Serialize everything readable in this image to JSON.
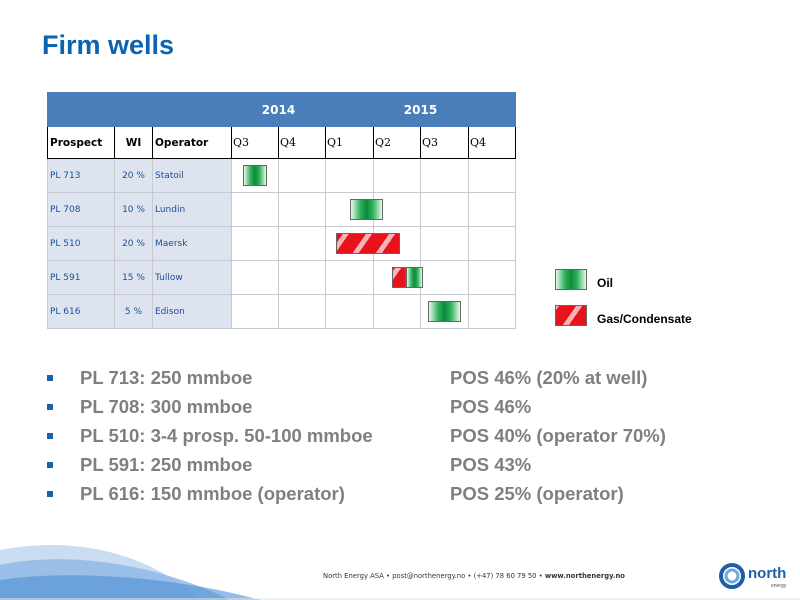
{
  "slide": {
    "title": "Firm wells"
  },
  "gantt": {
    "years": [
      "2014",
      "2015"
    ],
    "headers": {
      "prospect": "Prospect",
      "wi": "WI",
      "operator": "Operator"
    },
    "quarters": [
      "Q3",
      "Q4",
      "Q1",
      "Q2",
      "Q3",
      "Q4"
    ],
    "rows": [
      {
        "prospect": "PL 713",
        "wi": "20 %",
        "operator": "Statoil",
        "type": "oil",
        "start": 0.25,
        "end": 0.75
      },
      {
        "prospect": "PL 708",
        "wi": "10 %",
        "operator": "Lundin",
        "type": "oil",
        "start": 2.5,
        "end": 3.2
      },
      {
        "prospect": "PL 510",
        "wi": "20 %",
        "operator": "Maersk",
        "type": "gas",
        "start": 2.2,
        "end": 3.55
      },
      {
        "prospect": "PL 591",
        "wi": "15 %",
        "operator": "Tullow",
        "type": "mixed",
        "start": 3.4,
        "end": 4.05
      },
      {
        "prospect": "PL 616",
        "wi": "5 %",
        "operator": "Edison",
        "type": "oil",
        "start": 4.15,
        "end": 4.85
      }
    ]
  },
  "legend": {
    "oil_label": "Oil",
    "gas_label": "Gas/Condensate"
  },
  "bullets_left": [
    "PL 713: 250 mmboe",
    "PL 708: 300 mmboe",
    "PL 510: 3-4 prosp. 50-100 mmboe",
    "PL 591: 250 mmboe",
    "PL 616: 150 mmboe (operator)"
  ],
  "bullets_right": [
    "POS 46% (20% at well)",
    "POS 46%",
    "POS 40%  (operator 70%)",
    "POS 43%",
    "POS 25% (operator)"
  ],
  "footer": {
    "company": "North Energy ASA",
    "email": "post@northenergy.no",
    "phone": "(+47) 78 60 79 50",
    "website": "www.northenergy.no",
    "logo_word": "north",
    "logo_sub": "energy"
  },
  "colors": {
    "title": "#0b63b2",
    "header_bar": "#4a7ebb",
    "oil": "#0d8a3c",
    "gas": "#e8121c",
    "bullet_square": "#1f5fa8",
    "bullet_text": "#7f7f7f"
  }
}
